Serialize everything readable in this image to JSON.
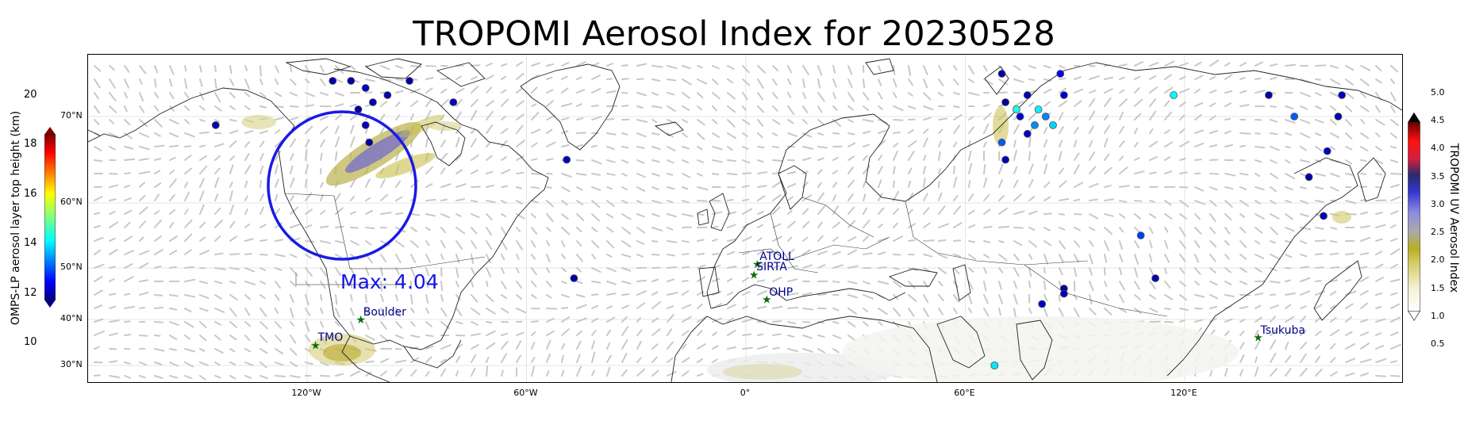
{
  "title": "TROPOMI Aerosol Index for 20230528",
  "map": {
    "lon_ticks": [
      {
        "label": "120°W",
        "lon": -120
      },
      {
        "label": "60°W",
        "lon": -60
      },
      {
        "label": "0°",
        "lon": 0
      },
      {
        "label": "60°E",
        "lon": 60
      },
      {
        "label": "120°E",
        "lon": 120
      }
    ],
    "lat_ticks": [
      {
        "label": "70°N",
        "lat": 70
      },
      {
        "label": "60°N",
        "lat": 60
      },
      {
        "label": "50°N",
        "lat": 50
      },
      {
        "label": "40°N",
        "lat": 40
      },
      {
        "label": "30°N",
        "lat": 30
      }
    ],
    "sites": [
      {
        "name": "ATOLL",
        "lon": 3.1,
        "lat": 50.6
      },
      {
        "name": "SIRTA",
        "lon": 2.2,
        "lat": 48.7
      },
      {
        "name": "OHP",
        "lon": 5.7,
        "lat": 43.9
      },
      {
        "name": "Boulder",
        "lon": -105.3,
        "lat": 40.0
      },
      {
        "name": "TMO",
        "lon": -117.7,
        "lat": 34.4
      },
      {
        "name": "Tsukuba",
        "lon": 140.1,
        "lat": 36.1
      }
    ],
    "max_annotation": "Max: 4.04",
    "plume_circle_color": "#1a1ae6",
    "site_marker_color": "#0a6e0a",
    "site_label_color": "#00008b"
  },
  "colorbar_left": {
    "label": "OMPS-LP aerosol layer top height (km)",
    "ticks": [
      "20",
      "18",
      "16",
      "14",
      "12",
      "10"
    ],
    "range": [
      10,
      20
    ]
  },
  "colorbar_right": {
    "label": "TROPOMI UV Aerosol Index",
    "ticks": [
      "5.0",
      "4.5",
      "4.0",
      "3.5",
      "3.0",
      "2.5",
      "2.0",
      "1.5",
      "1.0",
      "0.5"
    ],
    "range": [
      0.5,
      5.0
    ]
  },
  "omps_points": [
    {
      "lon": -145,
      "lat": 69,
      "h": 10.5
    },
    {
      "lon": -113,
      "lat": 75,
      "h": 10.4
    },
    {
      "lon": -108,
      "lat": 75,
      "h": 10.3
    },
    {
      "lon": -104,
      "lat": 74,
      "h": 10.6
    },
    {
      "lon": -102,
      "lat": 72,
      "h": 10.4
    },
    {
      "lon": -106,
      "lat": 71,
      "h": 10.2
    },
    {
      "lon": -104,
      "lat": 69,
      "h": 10.5
    },
    {
      "lon": -103,
      "lat": 67,
      "h": 10.3
    },
    {
      "lon": -98,
      "lat": 73,
      "h": 10.4
    },
    {
      "lon": -92,
      "lat": 75,
      "h": 10.3
    },
    {
      "lon": -80,
      "lat": 72,
      "h": 10.5
    },
    {
      "lon": -49,
      "lat": 65,
      "h": 10.6
    },
    {
      "lon": -47,
      "lat": 48,
      "h": 10.4
    },
    {
      "lon": 70,
      "lat": 76,
      "h": 10.3
    },
    {
      "lon": 71,
      "lat": 72,
      "h": 10.2
    },
    {
      "lon": 74,
      "lat": 71,
      "h": 13.8
    },
    {
      "lon": 77,
      "lat": 73,
      "h": 10.4
    },
    {
      "lon": 79,
      "lat": 69,
      "h": 12.5
    },
    {
      "lon": 77,
      "lat": 68,
      "h": 10.6
    },
    {
      "lon": 75,
      "lat": 70,
      "h": 10.8
    },
    {
      "lon": 80,
      "lat": 71,
      "h": 13.5
    },
    {
      "lon": 82,
      "lat": 70,
      "h": 12.4
    },
    {
      "lon": 84,
      "lat": 69,
      "h": 13.2
    },
    {
      "lon": 86,
      "lat": 76,
      "h": 11.0
    },
    {
      "lon": 87,
      "lat": 73,
      "h": 10.7
    },
    {
      "lon": 70,
      "lat": 67,
      "h": 12.0
    },
    {
      "lon": 71,
      "lat": 65,
      "h": 10.5
    },
    {
      "lon": 117,
      "lat": 73,
      "h": 13.6
    },
    {
      "lon": 143,
      "lat": 73,
      "h": 10.4
    },
    {
      "lon": 150,
      "lat": 70,
      "h": 12.0
    },
    {
      "lon": 163,
      "lat": 73,
      "h": 10.5
    },
    {
      "lon": 162,
      "lat": 70,
      "h": 10.4
    },
    {
      "lon": 159,
      "lat": 66,
      "h": 10.6
    },
    {
      "lon": 154,
      "lat": 63,
      "h": 10.3
    },
    {
      "lon": 158,
      "lat": 58,
      "h": 10.5
    },
    {
      "lon": 108,
      "lat": 55,
      "h": 11.7
    },
    {
      "lon": 112,
      "lat": 48,
      "h": 10.4
    },
    {
      "lon": 87,
      "lat": 46,
      "h": 10.3
    },
    {
      "lon": 87,
      "lat": 45,
      "h": 10.5
    },
    {
      "lon": 81,
      "lat": 43,
      "h": 10.6
    },
    {
      "lon": 68,
      "lat": 27,
      "h": 13.0
    },
    {
      "lon": 68,
      "lat": 26,
      "h": 13.4
    }
  ]
}
